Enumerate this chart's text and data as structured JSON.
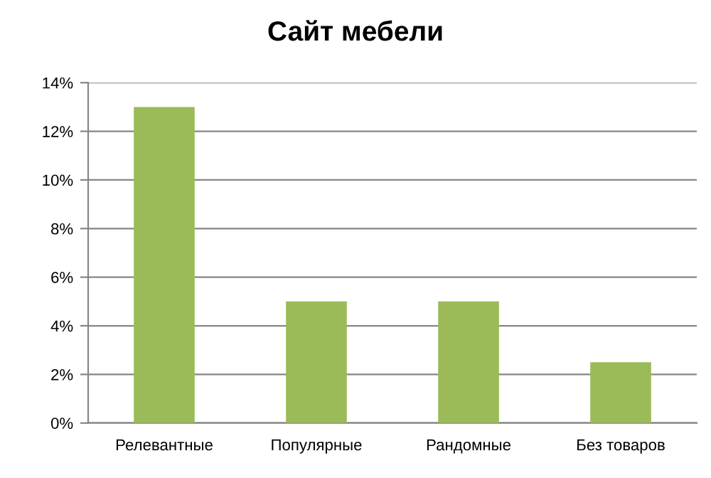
{
  "chart_data": {
    "type": "bar",
    "title": "Сайт мебели",
    "categories": [
      "Релевантные",
      "Популярные",
      "Рандомные",
      "Без товаров"
    ],
    "values": [
      13,
      5,
      5,
      2.5
    ],
    "color": "#9bbb59",
    "ylim": [
      0,
      14
    ],
    "yticks": [
      {
        "value": 0,
        "label": "0%"
      },
      {
        "value": 2,
        "label": "2%"
      },
      {
        "value": 4,
        "label": "4%"
      },
      {
        "value": 6,
        "label": "6%"
      },
      {
        "value": 8,
        "label": "8%"
      },
      {
        "value": 10,
        "label": "10%"
      },
      {
        "value": 12,
        "label": "12%"
      },
      {
        "value": 14,
        "label": "14%"
      }
    ],
    "grid": "y",
    "legend": false
  }
}
